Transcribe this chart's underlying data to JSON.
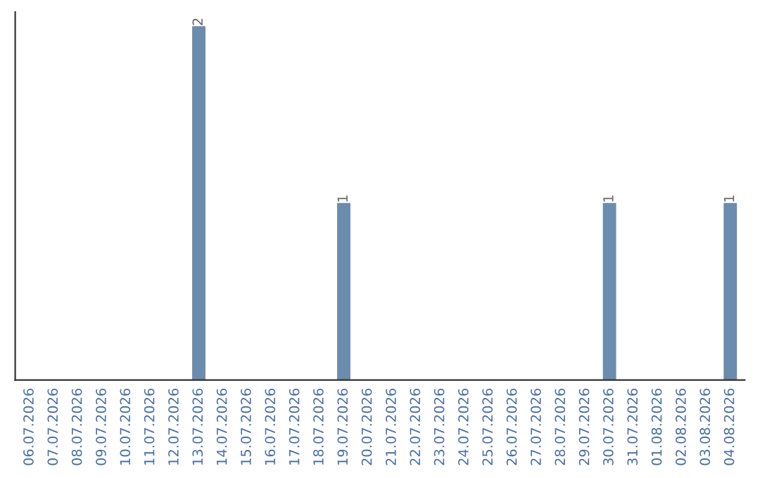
{
  "chart_data": {
    "type": "bar",
    "categories": [
      "06.07.2026",
      "07.07.2026",
      "08.07.2026",
      "09.07.2026",
      "10.07.2026",
      "11.07.2026",
      "12.07.2026",
      "13.07.2026",
      "14.07.2026",
      "15.07.2026",
      "16.07.2026",
      "17.07.2026",
      "18.07.2026",
      "19.07.2026",
      "20.07.2026",
      "21.07.2026",
      "22.07.2026",
      "23.07.2026",
      "24.07.2026",
      "25.07.2026",
      "26.07.2026",
      "27.07.2026",
      "28.07.2026",
      "29.07.2026",
      "30.07.2026",
      "31.07.2026",
      "01.08.2026",
      "02.08.2026",
      "03.08.2026",
      "04.08.2026"
    ],
    "values": [
      0,
      0,
      0,
      0,
      0,
      0,
      0,
      2,
      0,
      0,
      0,
      0,
      0,
      1,
      0,
      0,
      0,
      0,
      0,
      0,
      0,
      0,
      0,
      0,
      1,
      0,
      0,
      0,
      0,
      1
    ],
    "value_labels": [
      null,
      null,
      null,
      null,
      null,
      null,
      null,
      "2",
      null,
      null,
      null,
      null,
      null,
      "1",
      null,
      null,
      null,
      null,
      null,
      null,
      null,
      null,
      null,
      null,
      "1",
      null,
      null,
      null,
      null,
      "1"
    ],
    "color": "#6b8cad",
    "tick_labels": "x",
    "grid": false,
    "legend": false
  }
}
